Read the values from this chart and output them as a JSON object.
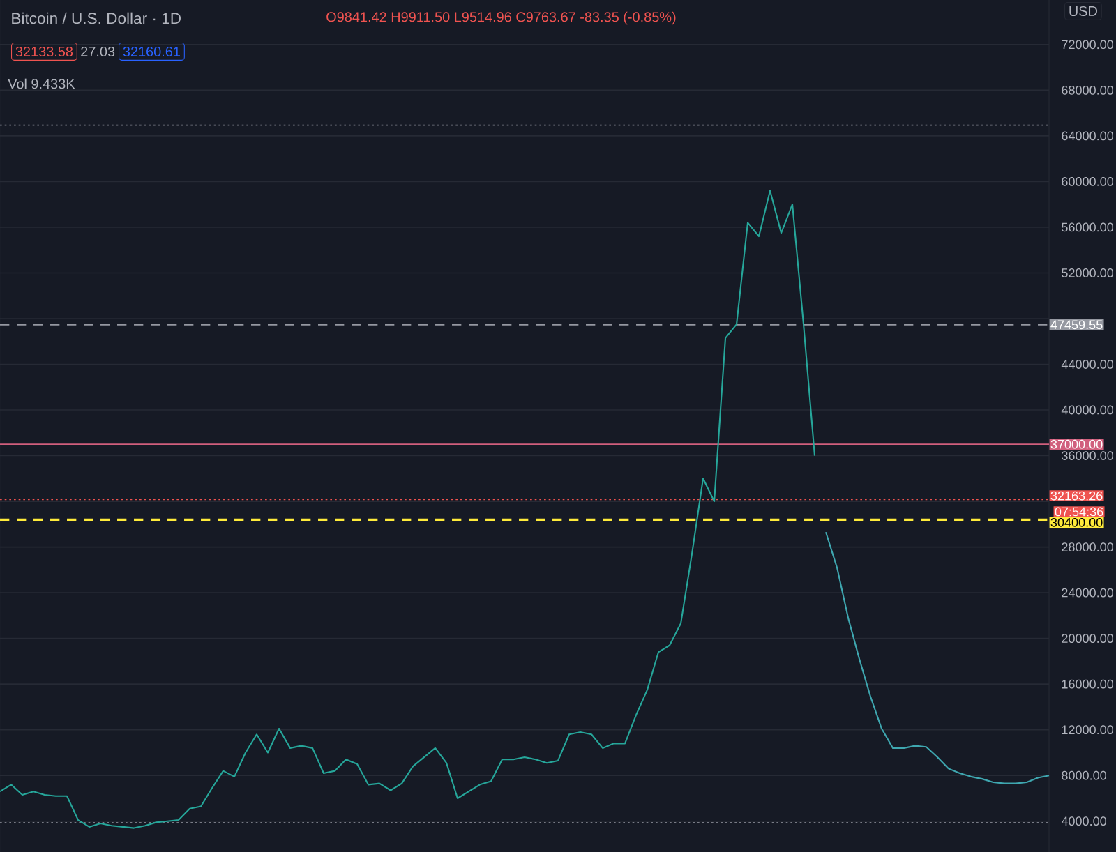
{
  "chart_data": {
    "type": "line",
    "title": "Bitcoin / U.S. Dollar · 1D",
    "annotations": [
      "O9841.42 H9911.50 L9514.96 C9763.67 -83.35 (-0.85%)",
      "32133.58",
      "27.03",
      "32160.61",
      "Vol 9.433K",
      "USD",
      "07:54:36"
    ],
    "categories": [
      null,
      null,
      null,
      null,
      null,
      null,
      null,
      null,
      null,
      null,
      null,
      null,
      null,
      null,
      null,
      null,
      null,
      null,
      null,
      null,
      null,
      null,
      null,
      null,
      null,
      null,
      null,
      null,
      null,
      null,
      null,
      null,
      null,
      null,
      null,
      null,
      null,
      null,
      null,
      null,
      null,
      null,
      null,
      null,
      null,
      null,
      null,
      null,
      null,
      null,
      null,
      null,
      null,
      null,
      null,
      null,
      null,
      null,
      null,
      null,
      null,
      null,
      null,
      null,
      null,
      null,
      null,
      null,
      null,
      null,
      null,
      null,
      null,
      null,
      null,
      null,
      null,
      null,
      null,
      null,
      null,
      null,
      null,
      null,
      null,
      null,
      null,
      null,
      null,
      null,
      null,
      null,
      null,
      null,
      null
    ],
    "ylim": [
      1300,
      75900
    ],
    "yticks": [
      {
        "value": 4000,
        "label": "4000.00"
      },
      {
        "value": 8000,
        "label": "8000.00"
      },
      {
        "value": 12000,
        "label": "12000.00"
      },
      {
        "value": 16000,
        "label": "16000.00"
      },
      {
        "value": 20000,
        "label": "20000.00"
      },
      {
        "value": 24000,
        "label": "24000.00"
      },
      {
        "value": 28000,
        "label": "28000.00"
      },
      {
        "value": 32000,
        "label": null
      },
      {
        "value": 36000,
        "label": "36000.00"
      },
      {
        "value": 40000,
        "label": "40000.00"
      },
      {
        "value": 44000,
        "label": "44000.00"
      },
      {
        "value": 48000,
        "label": null
      },
      {
        "value": 52000,
        "label": "52000.00"
      },
      {
        "value": 56000,
        "label": "56000.00"
      },
      {
        "value": 60000,
        "label": "60000.00"
      },
      {
        "value": 64000,
        "label": "64000.00"
      },
      {
        "value": 68000,
        "label": "68000.00"
      },
      {
        "value": 72000,
        "label": "72000.00"
      }
    ],
    "tick_labels": "y",
    "grid": "y",
    "line_style": "solid",
    "series": [
      {
        "color": "#26a69a",
        "values": [
          6600,
          7200,
          6300,
          6600,
          6300,
          6200,
          6200,
          4100,
          3500,
          3800,
          3600,
          3500,
          3400,
          3600,
          3900,
          4000,
          4100,
          5100,
          5300,
          6900,
          8400,
          7900,
          10000,
          11600,
          10000,
          12100,
          10400,
          10600,
          10400,
          8200,
          8400,
          9400,
          9000,
          7200,
          7300,
          6700,
          7300,
          8800,
          9600,
          10400,
          9100,
          6000,
          6600,
          7200,
          7500,
          9400,
          9400,
          9600,
          9400,
          9100,
          9300,
          11600,
          11800,
          11600,
          10400,
          10800,
          10800,
          13300,
          15500,
          18800,
          19400,
          21300,
          27400,
          34000,
          32000,
          46300,
          47500,
          56400,
          55200,
          59200,
          55500,
          58000,
          47500,
          36000,
          null,
          null,
          null,
          null,
          null,
          null,
          null,
          null,
          null,
          null,
          null,
          null,
          null,
          null,
          null,
          null,
          null,
          null,
          null,
          null,
          null
        ]
      },
      {
        "color": "#3fa7b0",
        "values": [
          null,
          null,
          null,
          null,
          null,
          null,
          null,
          null,
          null,
          null,
          null,
          null,
          null,
          null,
          null,
          null,
          null,
          null,
          null,
          null,
          null,
          null,
          null,
          null,
          null,
          null,
          null,
          null,
          null,
          null,
          null,
          null,
          null,
          null,
          null,
          null,
          null,
          null,
          null,
          null,
          null,
          null,
          null,
          null,
          null,
          null,
          null,
          null,
          null,
          null,
          null,
          null,
          null,
          null,
          null,
          null,
          null,
          null,
          null,
          null,
          null,
          null,
          null,
          null,
          null,
          null,
          null,
          null,
          null,
          null,
          null,
          null,
          null,
          null,
          29300,
          26200,
          21800,
          18200,
          14900,
          12100,
          10400,
          10400,
          10600,
          10500,
          9600,
          8600,
          8200,
          7900,
          7700,
          7400,
          7300,
          7300,
          7400,
          7800,
          8000
        ]
      }
    ],
    "ref_lines": [
      {
        "axis": "y",
        "value": 37000,
        "label": "37000.00",
        "color": "#d15f7d",
        "line_style": "solid"
      },
      {
        "axis": "y",
        "value": 30400,
        "label": "30400.00",
        "color": "#ffeb3b",
        "line_style": "dashed"
      },
      {
        "axis": "y",
        "value": 47459.55,
        "label": "47459.55",
        "color": "#9598a1",
        "line_style": "dashed"
      },
      {
        "axis": "y",
        "value": 32163.26,
        "label": "32163.26",
        "color": "#ef5350",
        "line_style": "dotted"
      },
      {
        "axis": "y",
        "value": 64930,
        "color": "#787b86",
        "line_style": "dotted"
      },
      {
        "axis": "y",
        "value": 3870,
        "color": "#787b86",
        "line_style": "dotted"
      }
    ]
  }
}
